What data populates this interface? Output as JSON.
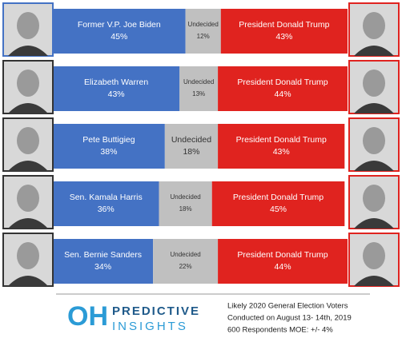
{
  "chart_data": {
    "type": "stacked-bar",
    "categories": [
      "Former V.P. Joe Biden",
      "Elizabeth Warren",
      "Pete Buttigieg",
      "Sen. Kamala Harris",
      "Sen. Bernie Sanders"
    ],
    "xlim": [
      0,
      100
    ],
    "series": [
      {
        "color": "#4472c4",
        "values": [
          45,
          43,
          38,
          36,
          34
        ],
        "value_labels": [
          "45%",
          "43%",
          "38%",
          "36%",
          "34%"
        ]
      },
      {
        "name": "Undecided",
        "color": "#c0c0c0",
        "values": [
          12,
          13,
          18,
          18,
          22
        ],
        "value_labels": [
          "12%",
          "13%",
          "18%",
          "18%",
          "22%"
        ]
      },
      {
        "name": "President Donald Trump",
        "color": "#e0231f",
        "values": [
          43,
          44,
          43,
          45,
          44
        ],
        "value_labels": [
          "43%",
          "44%",
          "43%",
          "45%",
          "44%"
        ]
      }
    ]
  },
  "footer": {
    "logo": "OH",
    "brand_top": "PREDICTIVE",
    "brand_bottom": "INSIGHTS",
    "notes": [
      "Likely 2020 General Election Voters",
      "Conducted on August 13- 14th, 2019",
      "600 Respondents MOE: +/- 4%"
    ]
  }
}
